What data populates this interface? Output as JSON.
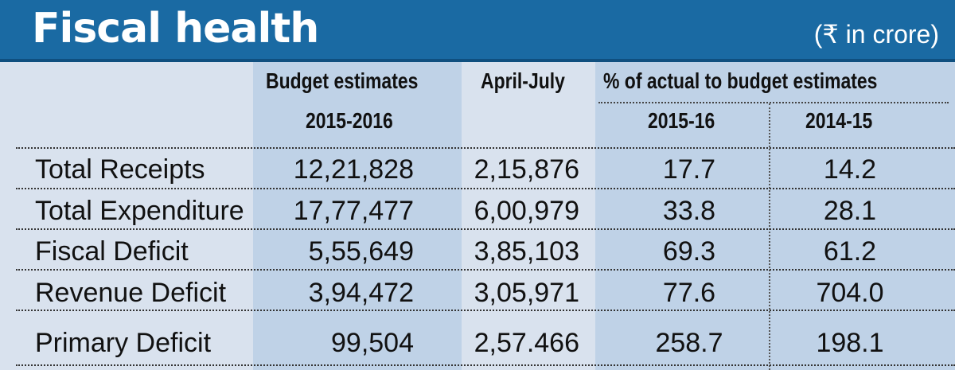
{
  "header": {
    "title": "Fiscal health",
    "unit": "(₹ in crore)"
  },
  "columns": {
    "budget_line1": "Budget estimates",
    "budget_line2": "2015-2016",
    "april_july": "April-July",
    "pct_group": "% of actual to budget estimates",
    "pct_2015": "2015-16",
    "pct_2014": "2014-15"
  },
  "rows": [
    {
      "label": "Total Receipts",
      "budget": "12,21,828",
      "april_july": "2,15,876",
      "pct_2015": "17.7",
      "pct_2014": "14.2"
    },
    {
      "label": "Total Expenditure",
      "budget": "17,77,477",
      "april_july": "6,00,979",
      "pct_2015": "33.8",
      "pct_2014": "28.1"
    },
    {
      "label": "Fiscal Deficit",
      "budget": "5,55,649",
      "april_july": "3,85,103",
      "pct_2015": "69.3",
      "pct_2014": "61.2"
    },
    {
      "label": "Revenue Deficit",
      "budget": "3,94,472",
      "april_july": "3,05,971",
      "pct_2015": "77.6",
      "pct_2014": "704.0"
    },
    {
      "label": "Primary Deficit",
      "budget": "99,504",
      "april_july": "2,57.466",
      "pct_2015": "258.7",
      "pct_2014": "198.1"
    }
  ],
  "colors": {
    "header_bg": "#1a6aa3",
    "page_bg": "#d9e2ee",
    "band_bg": "#bfd2e7"
  }
}
